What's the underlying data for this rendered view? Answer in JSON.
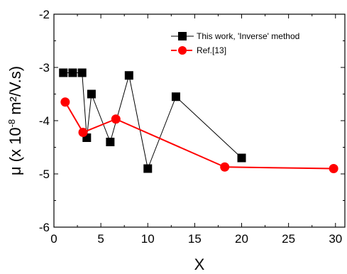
{
  "chart_data": {
    "type": "line",
    "xlabel": "X",
    "ylabel_main": "μ (x 10",
    "ylabel_exp": "-8",
    "ylabel_unit": " m²/V.s)",
    "xlim": [
      0,
      31
    ],
    "ylim": [
      -6,
      -2
    ],
    "xticks": [
      0,
      5,
      10,
      15,
      20,
      25,
      30
    ],
    "yticks": [
      -6,
      -5,
      -4,
      -3,
      -2
    ],
    "xtick_labels": [
      "0",
      "5",
      "10",
      "15",
      "20",
      "25",
      "30"
    ],
    "ytick_labels": [
      "-6",
      "-5",
      "-4",
      "-3",
      "-2"
    ],
    "legend_position": "top-right",
    "series": [
      {
        "name": "This work, 'Inverse' method",
        "marker": "square",
        "color": "#000000",
        "x": [
          1,
          2,
          3,
          3.5,
          4,
          6,
          8,
          10,
          13,
          20
        ],
        "y": [
          -3.1,
          -3.1,
          -3.1,
          -4.32,
          -3.5,
          -4.4,
          -3.15,
          -4.9,
          -3.55,
          -4.7
        ]
      },
      {
        "name": "Ref.[13]",
        "marker": "circle",
        "color": "#ff0000",
        "x": [
          1.2,
          3.1,
          6.6,
          18.2,
          29.8
        ],
        "y": [
          -3.65,
          -4.22,
          -3.97,
          -4.87,
          -4.9
        ]
      }
    ]
  }
}
